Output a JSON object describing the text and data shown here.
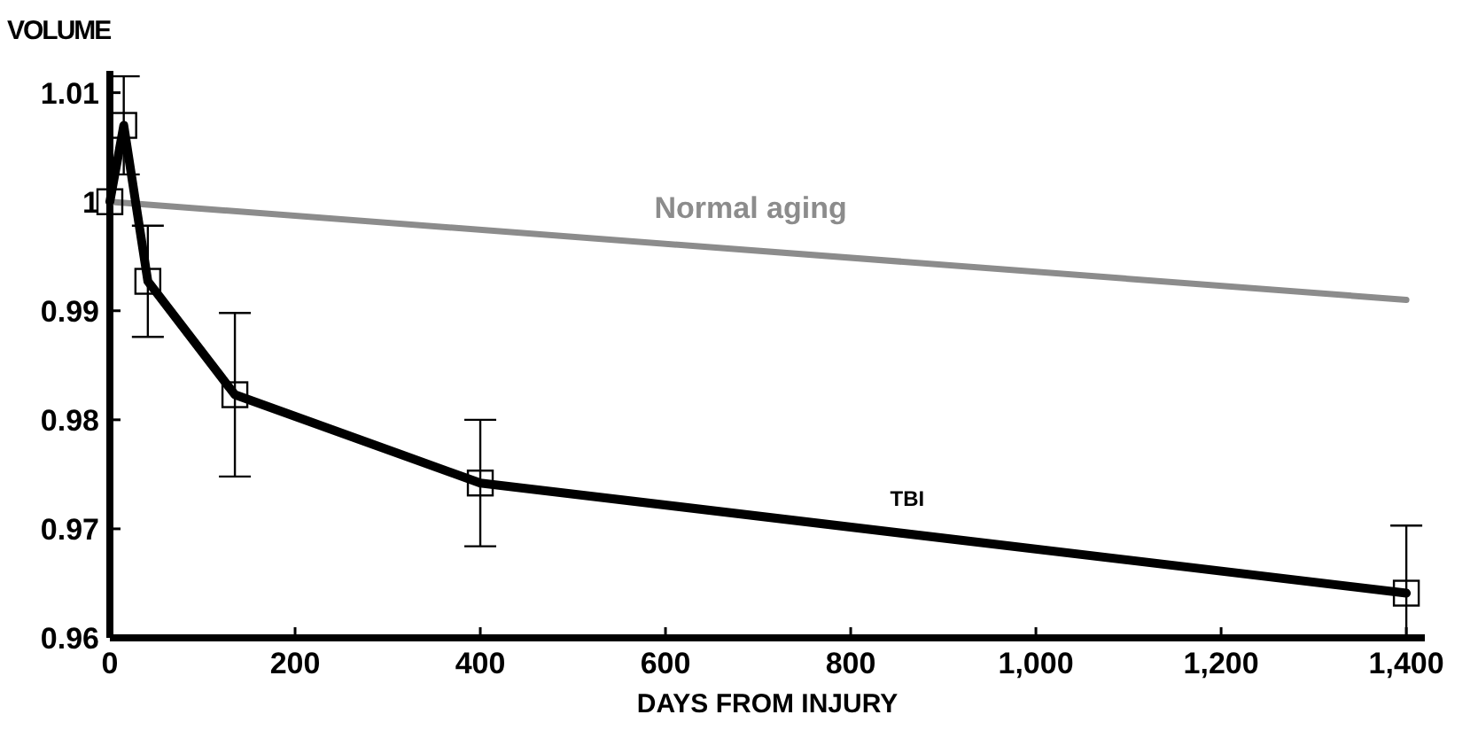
{
  "chart_data": {
    "type": "line",
    "xlabel": "DAYS FROM INJURY",
    "ylabel": "VOLUME",
    "xlim": [
      0,
      1420
    ],
    "xticks": [
      0,
      200,
      400,
      600,
      800,
      {
        "value": 1000,
        "label": "1,000"
      },
      {
        "value": 1200,
        "label": "1,200"
      },
      {
        "value": 1400,
        "label": "1,400"
      }
    ],
    "ylim": [
      0.96,
      1.012
    ],
    "yticks": [
      0.96,
      0.97,
      0.98,
      0.99,
      1,
      1.01
    ],
    "grid": false,
    "line_style": "solid",
    "series": [
      {
        "name": "TBI",
        "color": "#000000",
        "marker": "square",
        "x": [
          0,
          15,
          41,
          135,
          400,
          1400
        ],
        "values": [
          1.0,
          1.007,
          0.9927,
          0.9823,
          0.9742,
          0.9641
        ],
        "errors": [
          null,
          0.0045,
          0.0051,
          0.0075,
          0.0058,
          [
            0.96,
            0.9703
          ]
        ]
      },
      {
        "name": "Normal aging",
        "color": "#8c8c8c",
        "marker": "none",
        "x": [
          0,
          1400
        ],
        "values": [
          1.0,
          0.991
        ]
      }
    ]
  }
}
